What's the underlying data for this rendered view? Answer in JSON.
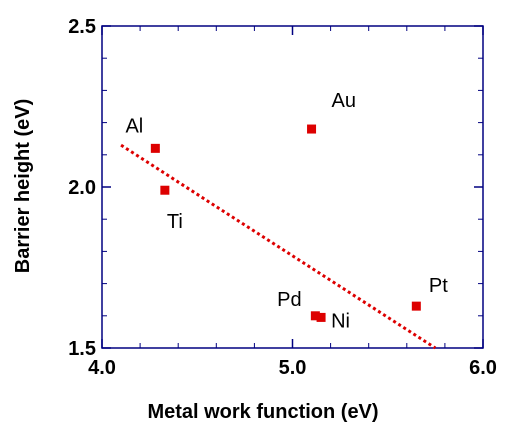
{
  "chart_data": {
    "type": "scatter",
    "xlabel": "Metal work function (eV)",
    "ylabel": "Barrier height (eV)",
    "xlim": [
      4.0,
      6.0
    ],
    "ylim": [
      1.5,
      2.5
    ],
    "x_ticks": [
      "4.0",
      "5.0",
      "6.0"
    ],
    "y_ticks": [
      "1.5",
      "2.0",
      "2.5"
    ],
    "grid": false,
    "points": [
      {
        "label": "Al",
        "x": 4.28,
        "y": 2.12
      },
      {
        "label": "Ti",
        "x": 4.33,
        "y": 1.99
      },
      {
        "label": "Au",
        "x": 5.1,
        "y": 2.18
      },
      {
        "label": "Pd",
        "x": 5.12,
        "y": 1.6
      },
      {
        "label": "Ni",
        "x": 5.15,
        "y": 1.595
      },
      {
        "label": "Pt",
        "x": 5.65,
        "y": 1.63
      }
    ],
    "fit_line": {
      "x": [
        4.1,
        5.75
      ],
      "y": [
        2.13,
        1.5
      ]
    },
    "colors": {
      "marker": "#dd0000",
      "fit": "#dd0000",
      "axis": "#000080"
    }
  }
}
